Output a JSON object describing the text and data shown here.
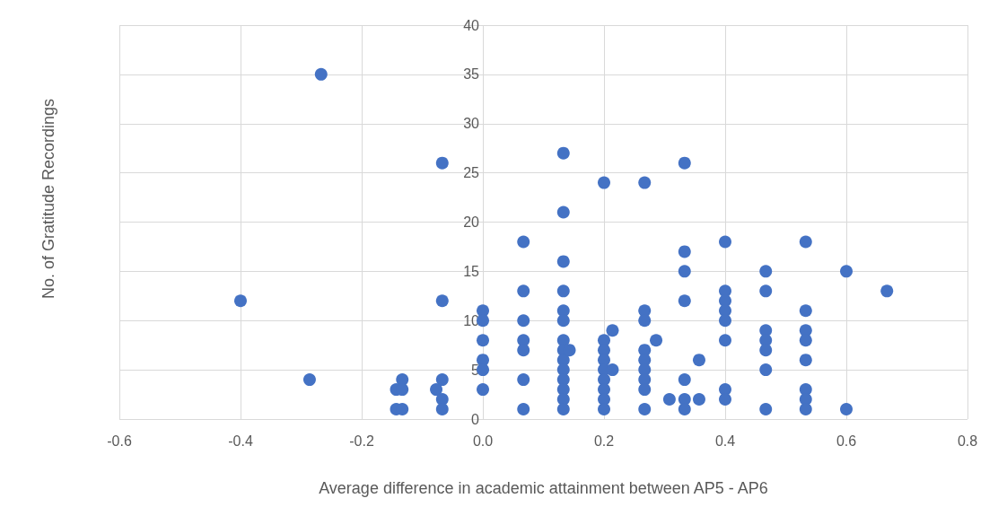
{
  "chart_data": {
    "type": "scatter",
    "xlabel": "Average difference in academic attainment between AP5 - AP6",
    "ylabel": "No. of Gratitude Recordings",
    "x": [
      -0.4,
      -0.267,
      -0.286,
      -0.143,
      -0.133,
      -0.133,
      -0.143,
      -0.133,
      -0.067,
      -0.067,
      -0.067,
      -0.077,
      -0.067,
      -0.067,
      0,
      0,
      0,
      0,
      0,
      0,
      0.067,
      0.067,
      0.067,
      0.067,
      0.067,
      0.067,
      0.067,
      0.133,
      0.133,
      0.133,
      0.133,
      0.133,
      0.133,
      0.133,
      0.133,
      0.133,
      0.133,
      0.133,
      0.133,
      0.133,
      0.133,
      0.143,
      0.2,
      0.2,
      0.2,
      0.2,
      0.2,
      0.2,
      0.2,
      0.2,
      0.2,
      0.214,
      0.214,
      0.267,
      0.267,
      0.267,
      0.267,
      0.267,
      0.267,
      0.267,
      0.267,
      0.267,
      0.286,
      0.333,
      0.333,
      0.333,
      0.333,
      0.333,
      0.333,
      0.333,
      0.308,
      0.357,
      0.357,
      0.4,
      0.4,
      0.4,
      0.4,
      0.4,
      0.4,
      0.4,
      0.4,
      0.467,
      0.467,
      0.467,
      0.467,
      0.467,
      0.467,
      0.467,
      0.533,
      0.533,
      0.533,
      0.533,
      0.533,
      0.533,
      0.533,
      0.533,
      0.6,
      0.6,
      0.667
    ],
    "values": [
      12,
      35,
      4,
      3,
      4,
      3,
      1,
      1,
      26,
      12,
      4,
      3,
      2,
      1,
      11,
      10,
      8,
      6,
      5,
      3,
      18,
      13,
      10,
      8,
      7,
      4,
      1,
      27,
      21,
      16,
      13,
      11,
      10,
      8,
      7,
      6,
      5,
      4,
      3,
      2,
      1,
      7,
      24,
      8,
      7,
      6,
      5,
      4,
      3,
      2,
      1,
      9,
      5,
      24,
      11,
      10,
      7,
      6,
      5,
      4,
      3,
      1,
      8,
      26,
      17,
      15,
      12,
      4,
      2,
      1,
      2,
      6,
      2,
      18,
      13,
      12,
      11,
      10,
      8,
      3,
      2,
      15,
      13,
      9,
      8,
      7,
      5,
      1,
      18,
      11,
      9,
      8,
      6,
      3,
      2,
      1,
      15,
      1,
      13
    ],
    "color": "#4472c4",
    "marker": "circle",
    "grid": true,
    "xlim": [
      -0.6,
      0.8
    ],
    "xticks": [
      {
        "value": -0.6,
        "label": "-0.6"
      },
      {
        "value": -0.4,
        "label": "-0.4"
      },
      {
        "value": -0.2,
        "label": "-0.2"
      },
      {
        "value": 0,
        "label": "0.0"
      },
      {
        "value": 0.2,
        "label": "0.2"
      },
      {
        "value": 0.4,
        "label": "0.4"
      },
      {
        "value": 0.6,
        "label": "0.6"
      },
      {
        "value": 0.8,
        "label": "0.8"
      }
    ],
    "ylim": [
      0,
      40
    ],
    "yticks": [
      0,
      5,
      10,
      15,
      20,
      25,
      30,
      35,
      40
    ]
  }
}
